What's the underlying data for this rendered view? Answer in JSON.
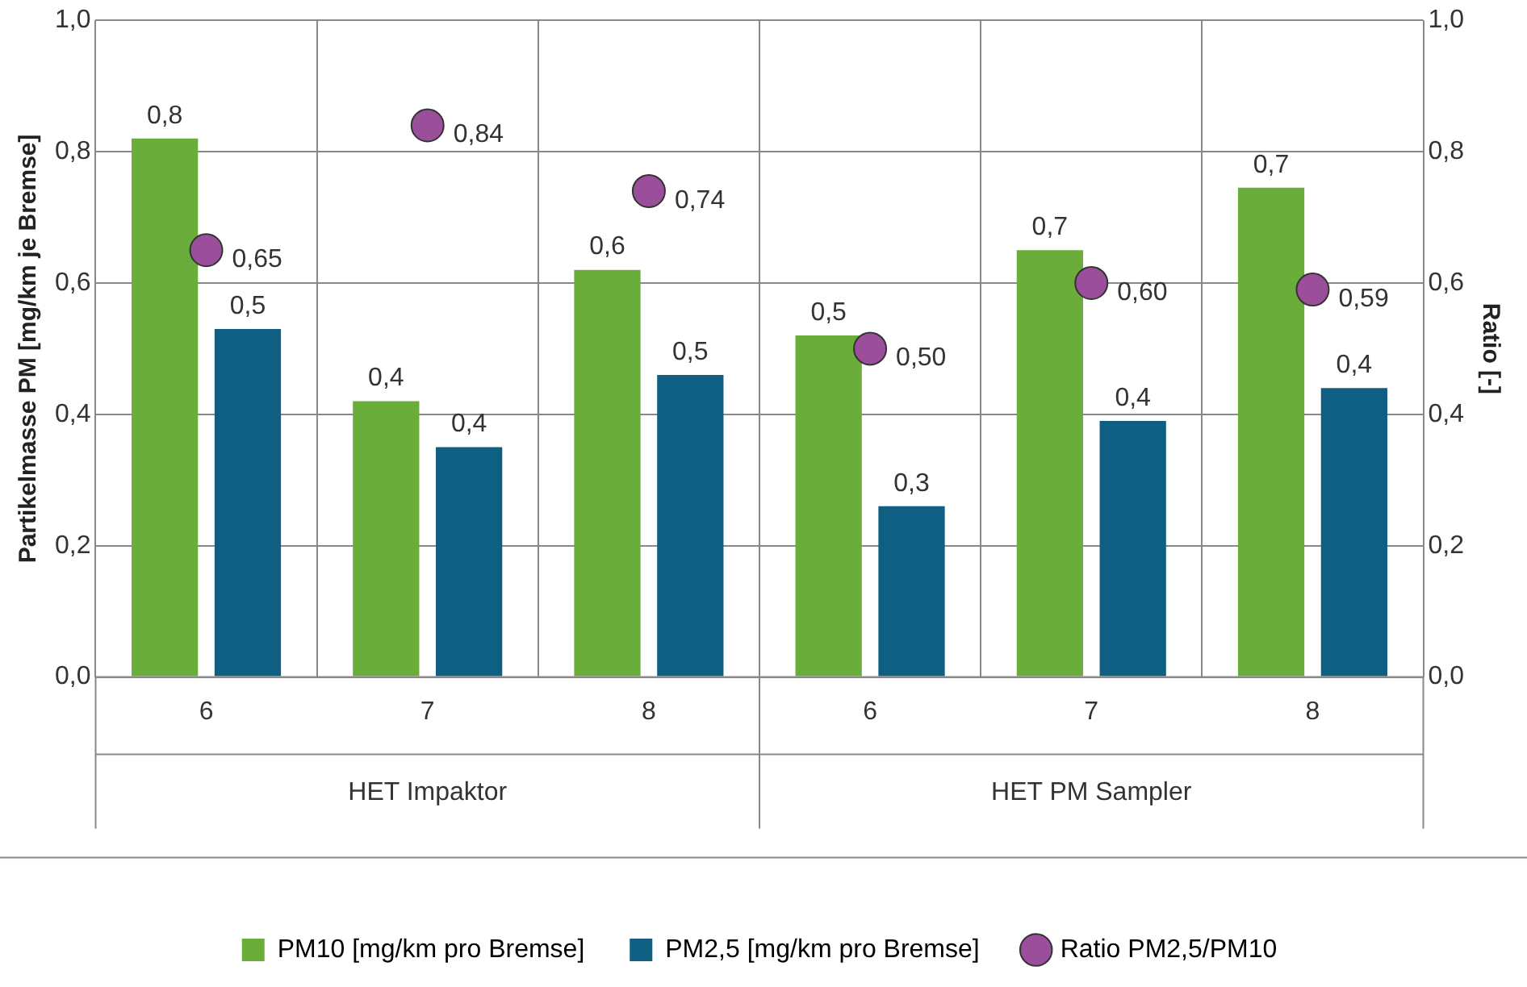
{
  "chart_data": {
    "type": "bar",
    "ylabel": "Partikelmasse PM [mg/km je Bremse]",
    "y2label": "Ratio [-]",
    "categories": [
      "6",
      "7",
      "8",
      "6",
      "7",
      "8"
    ],
    "series": [
      {
        "name": "PM10 [mg/km pro Bremse]",
        "color": "#6aad3a",
        "values": [
          0.82,
          0.42,
          0.62,
          0.52,
          0.65,
          0.745
        ],
        "value_labels": [
          "0,8",
          "0,4",
          "0,6",
          "0,5",
          "0,7",
          "0,7"
        ]
      },
      {
        "name": "PM2,5 [mg/km pro Bremse]",
        "color": "#0e5f82",
        "values": [
          0.53,
          0.35,
          0.46,
          0.26,
          0.39,
          0.44
        ],
        "value_labels": [
          "0,5",
          "0,4",
          "0,5",
          "0,3",
          "0,4",
          "0,4"
        ]
      },
      {
        "name": "Ratio PM2,5/PM10",
        "type": "scatter",
        "axis": "y2",
        "color": "#9b4f9b",
        "values": [
          0.65,
          0.84,
          0.74,
          0.5,
          0.6,
          0.59
        ],
        "value_labels": [
          "0,65",
          "0,84",
          "0,74",
          "0,50",
          "0,60",
          "0,59"
        ]
      }
    ],
    "ylim": [
      0,
      1
    ],
    "yticks": [
      {
        "value": 0,
        "label": "0,0"
      },
      {
        "value": 0.2,
        "label": "0,2"
      },
      {
        "value": 0.4,
        "label": "0,4"
      },
      {
        "value": 0.6,
        "label": "0,6"
      },
      {
        "value": 0.8,
        "label": "0,8"
      },
      {
        "value": 1,
        "label": "1,0"
      }
    ],
    "y2lim": [
      0,
      1
    ],
    "y2ticks": [
      {
        "value": 0,
        "label": "0,0"
      },
      {
        "value": 0.2,
        "label": "0,2"
      },
      {
        "value": 0.4,
        "label": "0,4"
      },
      {
        "value": 0.6,
        "label": "0,6"
      },
      {
        "value": 0.8,
        "label": "0,8"
      },
      {
        "value": 1,
        "label": "1,0"
      }
    ],
    "annotations": [
      "HET Impaktor",
      "HET PM Sampler"
    ],
    "grid": true,
    "legend": "bottom",
    "marker": "circle"
  }
}
